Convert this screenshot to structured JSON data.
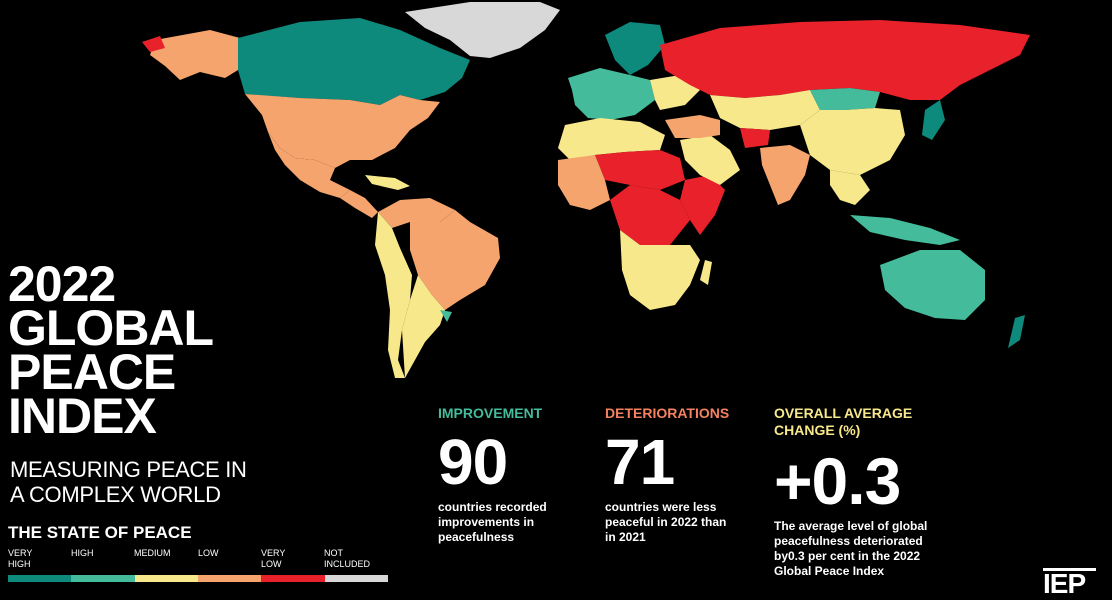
{
  "title_lines": [
    "2022",
    "GLOBAL",
    "PEACE",
    "INDEX"
  ],
  "subtitle_lines": [
    "MEASURING PEACE IN",
    "A COMPLEX WORLD"
  ],
  "legend": {
    "title": "THE STATE OF PEACE",
    "items": [
      {
        "label_lines": [
          "VERY",
          "HIGH"
        ],
        "color": "#0e8a7c"
      },
      {
        "label_lines": [
          "HIGH"
        ],
        "color": "#44bc9b"
      },
      {
        "label_lines": [
          "MEDIUM"
        ],
        "color": "#f7e88b"
      },
      {
        "label_lines": [
          "LOW"
        ],
        "color": "#f4a46c"
      },
      {
        "label_lines": [
          "VERY",
          "LOW"
        ],
        "color": "#e8212a"
      },
      {
        "label_lines": [
          "NOT",
          "INCLUDED"
        ],
        "color": "#d8d8d8"
      }
    ]
  },
  "stats": [
    {
      "label": "IMPROVEMENT",
      "value": "90",
      "desc": "countries recorded improvements in peacefulness",
      "color": "#44bc9b"
    },
    {
      "label": "DETERIORATIONS",
      "value": "71",
      "desc": "countries were less peaceful in 2022 than in 2021",
      "color": "#f48260"
    },
    {
      "label": "OVERALL AVERAGE CHANGE (%)",
      "value": "+0.3",
      "desc": "The average level of global peacefulness deteriorated by0.3 per cent in the 2022 Global Peace Index",
      "color": "#f7e88b"
    }
  ],
  "logo": "IEP",
  "map_regions": [
    {
      "name": "greenland",
      "level": "not-included"
    },
    {
      "name": "canada",
      "level": "very-high"
    },
    {
      "name": "alaska",
      "level": "low"
    },
    {
      "name": "usa",
      "level": "low"
    },
    {
      "name": "mexico",
      "level": "low"
    },
    {
      "name": "central-america",
      "level": "low"
    },
    {
      "name": "caribbean",
      "level": "medium"
    },
    {
      "name": "south-america-north",
      "level": "low"
    },
    {
      "name": "brazil",
      "level": "low"
    },
    {
      "name": "andes",
      "level": "medium"
    },
    {
      "name": "southern-cone",
      "level": "medium"
    },
    {
      "name": "scandinavia",
      "level": "very-high"
    },
    {
      "name": "western-europe",
      "level": "high"
    },
    {
      "name": "eastern-europe",
      "level": "medium"
    },
    {
      "name": "russia",
      "level": "very-low"
    },
    {
      "name": "central-asia",
      "level": "medium"
    },
    {
      "name": "mongolia",
      "level": "high"
    },
    {
      "name": "china",
      "level": "medium"
    },
    {
      "name": "north-africa",
      "level": "medium"
    },
    {
      "name": "sahel",
      "level": "very-low"
    },
    {
      "name": "west-africa",
      "level": "low"
    },
    {
      "name": "central-africa",
      "level": "very-low"
    },
    {
      "name": "east-africa",
      "level": "very-low"
    },
    {
      "name": "southern-africa",
      "level": "medium"
    },
    {
      "name": "arabia",
      "level": "medium"
    },
    {
      "name": "middle-east",
      "level": "low"
    },
    {
      "name": "afghanistan",
      "level": "very-low"
    },
    {
      "name": "india",
      "level": "low"
    },
    {
      "name": "southeast-asia",
      "level": "medium"
    },
    {
      "name": "indonesia",
      "level": "high"
    },
    {
      "name": "japan",
      "level": "very-high"
    },
    {
      "name": "australia",
      "level": "high"
    },
    {
      "name": "new-zealand",
      "level": "very-high"
    }
  ]
}
